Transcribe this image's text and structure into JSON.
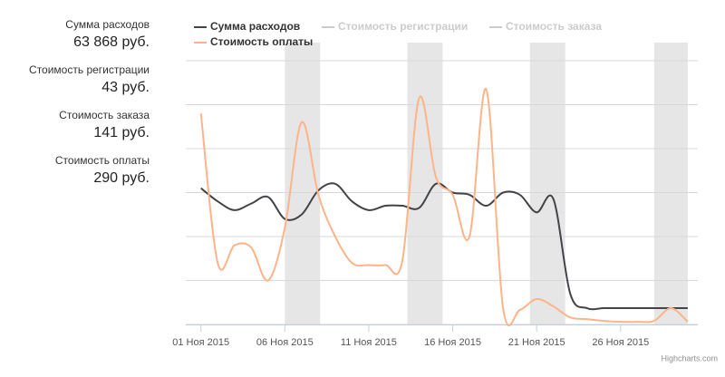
{
  "stats": [
    {
      "label": "Сумма расходов",
      "value": "63 868 руб."
    },
    {
      "label": "Стоимость регистрации",
      "value": "43 руб."
    },
    {
      "label": "Стоимость заказа",
      "value": "141 руб."
    },
    {
      "label": "Стоимость оплаты",
      "value": "290 руб."
    }
  ],
  "chart_data": {
    "type": "line",
    "x": [
      1,
      2,
      3,
      4,
      5,
      6,
      7,
      8,
      9,
      10,
      11,
      12,
      13,
      14,
      15,
      16,
      17,
      18,
      19,
      20,
      21,
      22,
      23,
      24,
      25,
      26,
      27,
      28,
      29,
      30
    ],
    "series": [
      {
        "name": "Сумма расходов",
        "color": "#434348",
        "visible": true,
        "values": [
          3.1,
          2.8,
          2.6,
          2.75,
          2.9,
          2.4,
          2.5,
          3.05,
          3.2,
          2.8,
          2.6,
          2.7,
          2.7,
          2.65,
          3.2,
          3.0,
          2.95,
          2.7,
          3.0,
          2.95,
          2.55,
          2.85,
          0.7,
          0.37,
          0.37,
          0.37,
          0.37,
          0.37,
          0.37,
          0.37
        ]
      },
      {
        "name": "Стоимость регистрации",
        "color": "#cccccc",
        "visible": false,
        "values": [
          null,
          null,
          null,
          null,
          null,
          null,
          null,
          null,
          null,
          null,
          null,
          null,
          null,
          null,
          null,
          null,
          null,
          null,
          null,
          null,
          null,
          null,
          null,
          null,
          null,
          null,
          null,
          null,
          null,
          null
        ]
      },
      {
        "name": "Стоимость заказа",
        "color": "#cccccc",
        "visible": false,
        "values": [
          null,
          null,
          null,
          null,
          null,
          null,
          null,
          null,
          null,
          null,
          null,
          null,
          null,
          null,
          null,
          null,
          null,
          null,
          null,
          null,
          null,
          null,
          null,
          null,
          null,
          null,
          null,
          null,
          null,
          null
        ]
      },
      {
        "name": "Стоимость оплаты",
        "color": "#ffb38a",
        "visible": true,
        "values": [
          4.8,
          1.4,
          1.8,
          1.75,
          1.0,
          2.2,
          4.6,
          2.95,
          2.0,
          1.4,
          1.35,
          1.35,
          1.45,
          5.15,
          3.35,
          2.95,
          2.0,
          5.35,
          0.37,
          0.33,
          0.58,
          0.41,
          0.16,
          0.12,
          0.08,
          0.06,
          0.06,
          0.08,
          0.37,
          0.06
        ]
      }
    ],
    "xlim": [
      0.1,
      30.6
    ],
    "xticks": [
      {
        "value": 1,
        "label": "01 Ноя 2015"
      },
      {
        "value": 6,
        "label": "06 Ноя 2015"
      },
      {
        "value": 11,
        "label": "11 Ноя 2015"
      },
      {
        "value": 16,
        "label": "16 Ноя 2015"
      },
      {
        "value": 21,
        "label": "21 Ноя 2015"
      },
      {
        "value": 26,
        "label": "26 Ноя 2015"
      }
    ],
    "ylim": [
      0,
      6
    ],
    "yticks": [
      0,
      1,
      2,
      3,
      4,
      5,
      6
    ],
    "grid": true,
    "plot_bands": [
      [
        6,
        8.1
      ],
      [
        13.3,
        15.4
      ],
      [
        20.6,
        22.7
      ],
      [
        28,
        30
      ]
    ],
    "credits": "Highcharts.com"
  }
}
